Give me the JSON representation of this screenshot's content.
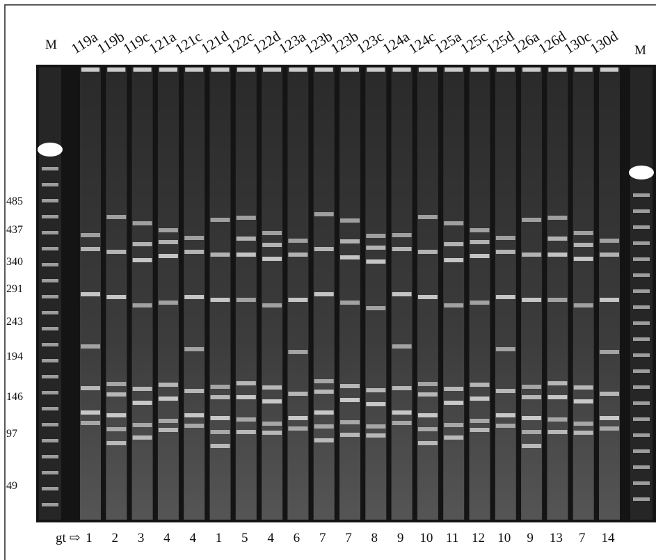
{
  "lanes": {
    "left_marker": "M",
    "samples": [
      "119a",
      "119b",
      "119c",
      "121a",
      "121c",
      "121d",
      "122c",
      "122d",
      "123a",
      "123b",
      "123b",
      "123c",
      "124a",
      "124c",
      "125a",
      "125c",
      "125d",
      "126a",
      "126d",
      "130c",
      "130d"
    ],
    "right_marker": "M"
  },
  "size_markers": [
    485,
    437,
    340,
    291,
    243,
    194,
    146,
    97,
    49
  ],
  "genotype": {
    "label": "gt ⇨",
    "values": [
      1,
      2,
      3,
      4,
      4,
      1,
      5,
      4,
      6,
      7,
      7,
      8,
      9,
      10,
      11,
      12,
      10,
      9,
      13,
      7,
      14
    ]
  }
}
